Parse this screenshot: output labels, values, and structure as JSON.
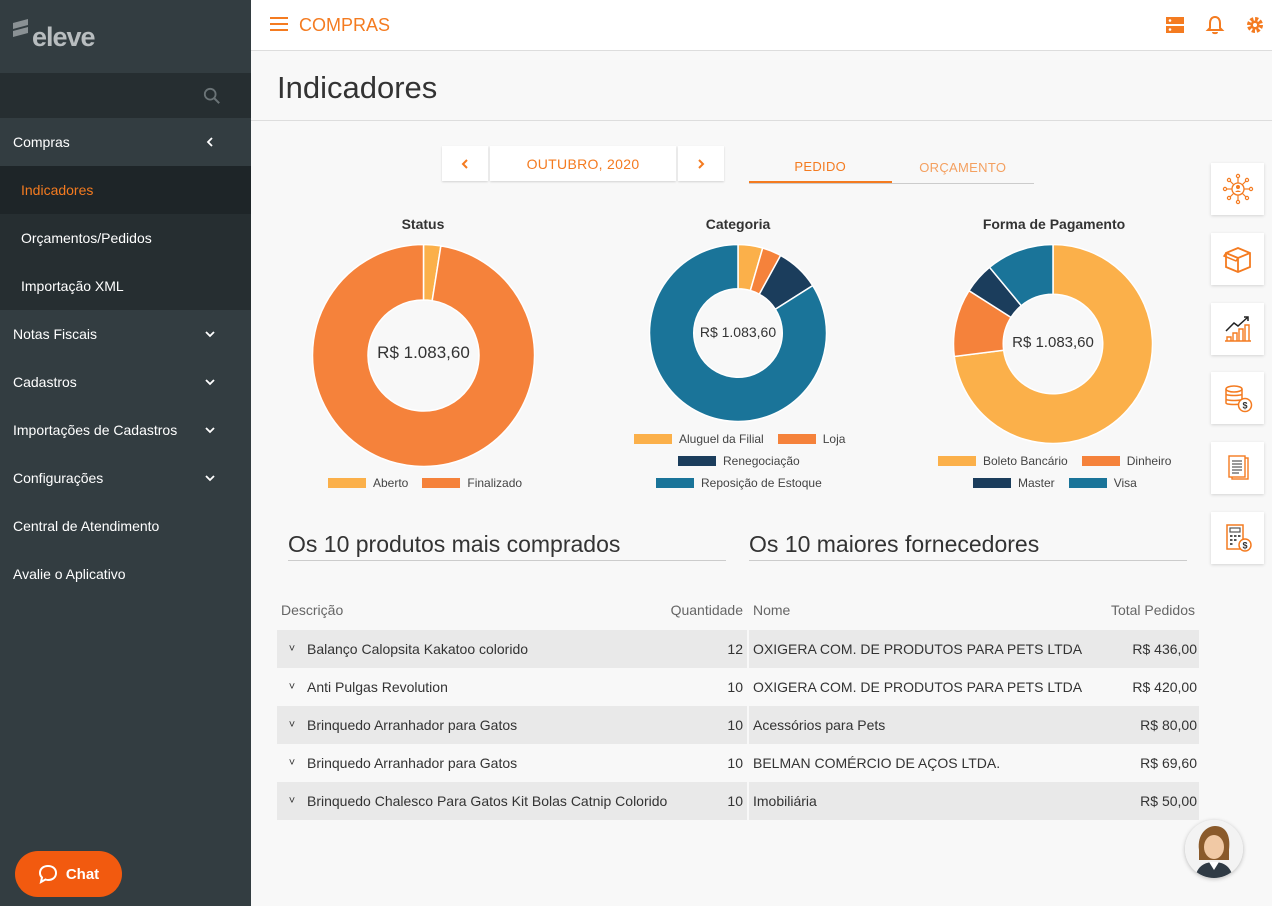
{
  "brand": {
    "logo_text": "eleve"
  },
  "sidebar": {
    "items": [
      {
        "label": "Compras"
      },
      {
        "label": "Indicadores"
      },
      {
        "label": "Orçamentos/Pedidos"
      },
      {
        "label": "Importação XML"
      },
      {
        "label": "Notas Fiscais"
      },
      {
        "label": "Cadastros"
      },
      {
        "label": "Importações de Cadastros"
      },
      {
        "label": "Configurações"
      },
      {
        "label": "Central de Atendimento"
      },
      {
        "label": "Avalie o Aplicativo"
      }
    ],
    "chat_label": "Chat"
  },
  "header": {
    "module": "COMPRAS",
    "page_title": "Indicadores"
  },
  "period": {
    "label": "OUTUBRO, 2020"
  },
  "tabs": [
    {
      "label": "PEDIDO"
    },
    {
      "label": "ORÇAMENTO"
    }
  ],
  "colors": {
    "accent": "#f47b20",
    "light_orange": "#fbb04a",
    "orange": "#f5823b",
    "navy": "#1b3d5c",
    "teal": "#1a7499"
  },
  "chart_data": [
    {
      "type": "pie",
      "title": "Status",
      "center_label": "R$ 1.083,60",
      "categories": [
        "Aberto",
        "Finalizado"
      ],
      "values": [
        2.5,
        97.5
      ],
      "colors": [
        "#fbb04a",
        "#f5823b"
      ]
    },
    {
      "type": "pie",
      "title": "Categoria",
      "center_label": "R$ 1.083,60",
      "categories": [
        "Aluguel da Filial",
        "Loja",
        "Renegociação",
        "Reposição de Estoque"
      ],
      "values": [
        4.5,
        3.5,
        8,
        84
      ],
      "colors": [
        "#fbb04a",
        "#f5823b",
        "#1b3d5c",
        "#1a7499"
      ]
    },
    {
      "type": "pie",
      "title": "Forma de Pagamento",
      "center_label": "R$ 1.083,60",
      "categories": [
        "Boleto Bancário",
        "Dinheiro",
        "Master",
        "Visa"
      ],
      "values": [
        73,
        11,
        5,
        11
      ],
      "colors": [
        "#fbb04a",
        "#f5823b",
        "#1b3d5c",
        "#1a7499"
      ]
    }
  ],
  "products": {
    "title": "Os 10 produtos mais comprados",
    "columns": [
      "Descrição",
      "Quantidade"
    ],
    "rows": [
      {
        "desc": "Balanço Calopsita Kakatoo colorido",
        "qty": "12"
      },
      {
        "desc": "Anti Pulgas Revolution",
        "qty": "10"
      },
      {
        "desc": "Brinquedo Arranhador para Gatos",
        "qty": "10"
      },
      {
        "desc": "Brinquedo Arranhador para Gatos",
        "qty": "10"
      },
      {
        "desc": "Brinquedo Chalesco Para Gatos Kit Bolas Catnip Colorido",
        "qty": "10"
      }
    ]
  },
  "suppliers": {
    "title": "Os 10 maiores fornecedores",
    "columns": [
      "Nome",
      "Total Pedidos"
    ],
    "rows": [
      {
        "name": "OXIGERA COM. DE PRODUTOS PARA PETS LTDA",
        "total": "R$ 436,00"
      },
      {
        "name": "OXIGERA COM. DE PRODUTOS PARA PETS LTDA",
        "total": "R$ 420,00"
      },
      {
        "name": "Acessórios para Pets",
        "total": "R$ 80,00"
      },
      {
        "name": "BELMAN COMÉRCIO DE AÇOS LTDA.",
        "total": "R$ 69,60"
      },
      {
        "name": "Imobiliária",
        "total": "R$ 50,00"
      }
    ]
  },
  "icons": [
    "search-icon",
    "menu-icon",
    "server-icon",
    "bell-icon",
    "gear-icon",
    "network-icon",
    "box-icon",
    "growth-chart-icon",
    "coins-icon",
    "documents-icon",
    "calculator-icon",
    "chat-bubble-icon"
  ]
}
